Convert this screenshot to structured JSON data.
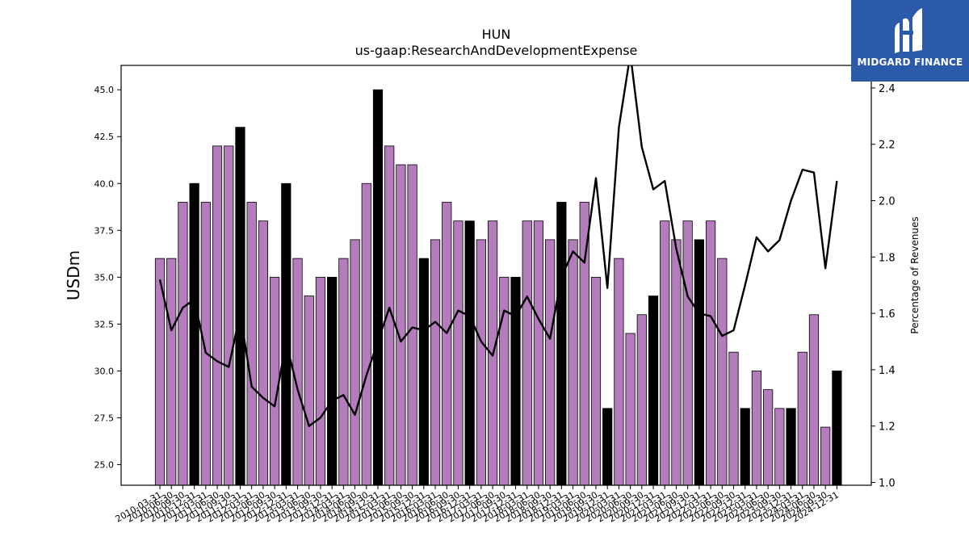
{
  "chart_data": {
    "type": "bar",
    "title": "HUN",
    "subtitle": "us-gaap:ResearchAndDevelopmentExpense",
    "ylabel": "USDm",
    "y2label": "Percentage of Revenues",
    "ylim": [
      23.9,
      46.3
    ],
    "y2lim": [
      0.99,
      2.48
    ],
    "yticks": [
      25.0,
      27.5,
      30.0,
      32.5,
      35.0,
      37.5,
      40.0,
      42.5,
      45.0
    ],
    "y2ticks": [
      1.0,
      1.2,
      1.4,
      1.6,
      1.8,
      2.0,
      2.2,
      2.4
    ],
    "colors": {
      "quarter_bar": "#b57cbd",
      "annual_bar": "#000000",
      "line": "#000000"
    },
    "categories": [
      "2010-03-31",
      "2010-06-30",
      "2010-09-30",
      "2010-12-31",
      "2011-03-31",
      "2011-06-30",
      "2011-09-30",
      "2011-12-31",
      "2012-03-31",
      "2012-06-30",
      "2012-09-30",
      "2012-12-31",
      "2013-03-31",
      "2013-06-30",
      "2013-09-30",
      "2013-12-31",
      "2014-03-31",
      "2014-06-30",
      "2014-09-30",
      "2014-12-31",
      "2015-03-31",
      "2015-06-30",
      "2015-09-30",
      "2015-12-31",
      "2016-03-31",
      "2016-06-30",
      "2016-09-30",
      "2016-12-31",
      "2017-03-31",
      "2017-06-30",
      "2017-09-30",
      "2017-12-31",
      "2018-03-31",
      "2018-06-30",
      "2018-09-30",
      "2018-12-31",
      "2019-03-31",
      "2019-06-30",
      "2019-09-30",
      "2019-12-31",
      "2020-03-31",
      "2020-06-30",
      "2020-09-30",
      "2020-12-31",
      "2021-03-31",
      "2021-06-30",
      "2021-09-30",
      "2021-12-31",
      "2022-03-31",
      "2022-06-30",
      "2022-09-30",
      "2022-12-31",
      "2023-03-31",
      "2023-06-30",
      "2023-09-30",
      "2023-12-31",
      "2024-03-31",
      "2024-06-30",
      "2024-09-30",
      "2024-12-31"
    ],
    "values": [
      36,
      36,
      39,
      40,
      39,
      42,
      42,
      43,
      39,
      38,
      35,
      40,
      36,
      34,
      35,
      35,
      36,
      37,
      40,
      45,
      42,
      41,
      41,
      36,
      37,
      39,
      38,
      38,
      37,
      38,
      35,
      35,
      38,
      38,
      37,
      39,
      37,
      39,
      35,
      28,
      36,
      32,
      33,
      34,
      38,
      37,
      38,
      37,
      38,
      36,
      31,
      28,
      30,
      29,
      28,
      28,
      31,
      33,
      27,
      30
    ],
    "annual": [
      false,
      false,
      false,
      true,
      false,
      false,
      false,
      true,
      false,
      false,
      false,
      true,
      false,
      false,
      false,
      true,
      false,
      false,
      false,
      true,
      false,
      false,
      false,
      true,
      false,
      false,
      false,
      true,
      false,
      false,
      false,
      true,
      false,
      false,
      false,
      true,
      false,
      false,
      false,
      true,
      false,
      false,
      false,
      true,
      false,
      false,
      false,
      true,
      false,
      false,
      false,
      true,
      false,
      false,
      false,
      true,
      false,
      false,
      false,
      true
    ],
    "pct_revenue": [
      1.72,
      1.54,
      1.62,
      1.65,
      1.46,
      1.43,
      1.41,
      1.6,
      1.34,
      1.3,
      1.27,
      1.5,
      1.33,
      1.2,
      1.23,
      1.29,
      1.31,
      1.24,
      1.38,
      1.5,
      1.62,
      1.5,
      1.55,
      1.54,
      1.57,
      1.53,
      1.61,
      1.59,
      1.5,
      1.45,
      1.61,
      1.59,
      1.66,
      1.58,
      1.51,
      1.73,
      1.82,
      1.78,
      2.08,
      1.69,
      2.26,
      2.52,
      2.19,
      2.04,
      2.07,
      1.83,
      1.66,
      1.6,
      1.59,
      1.52,
      1.54,
      1.7,
      1.87,
      1.82,
      1.86,
      2.0,
      2.11,
      2.1,
      1.76,
      2.07
    ]
  },
  "logo": {
    "text": "MIDGARD FINANCE"
  }
}
